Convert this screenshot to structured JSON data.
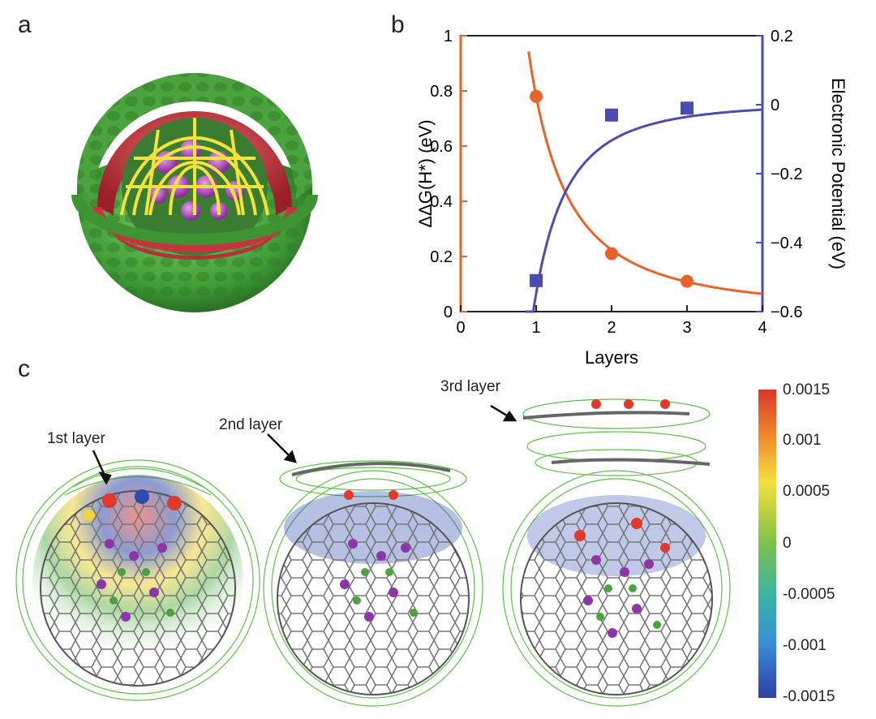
{
  "panels": {
    "a": "a",
    "b": "b",
    "c": "c"
  },
  "chart_data": {
    "type": "scatter",
    "xlabel": "Layers",
    "ylabel_left": "ΔΔG(H*) (eV)",
    "ylabel_right": "Electronic Potential (eV)",
    "xlim": [
      0,
      4
    ],
    "ylim_left": [
      0,
      1
    ],
    "ylim_right": [
      -0.6,
      0.2
    ],
    "xticks": [
      "0",
      "1",
      "2",
      "3",
      "4"
    ],
    "yticks_left": [
      "0",
      "0.2",
      "0.4",
      "0.6",
      "0.8",
      "1"
    ],
    "yticks_right": [
      "-0.6",
      "-0.4",
      "-0.2",
      "0",
      "0.2"
    ],
    "left_axis_color": "#e8622a",
    "right_axis_color": "#4a4cb0",
    "series": [
      {
        "axis": "left",
        "color": "#e8622a",
        "marker": "circle",
        "x": [
          1,
          2,
          3
        ],
        "y": [
          0.78,
          0.21,
          0.11
        ]
      },
      {
        "axis": "right",
        "color": "#4a4cb0",
        "marker": "square",
        "x": [
          1,
          2,
          3
        ],
        "y": [
          -0.51,
          -0.03,
          -0.01
        ]
      }
    ]
  },
  "panel_c": {
    "labels": [
      "1st layer",
      "2nd layer",
      "3rd layer"
    ],
    "colorbar_ticks": [
      "0.0015",
      "0.001",
      "0.0005",
      "0",
      "-0.0005",
      "-0.001",
      "-0.0015"
    ]
  }
}
